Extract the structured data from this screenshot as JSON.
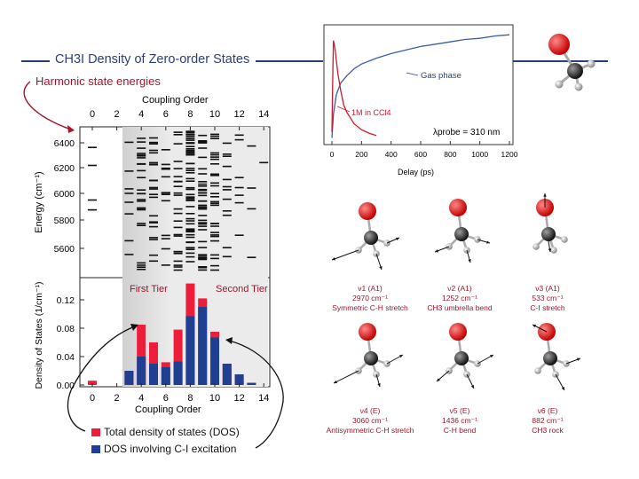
{
  "header": {
    "title": "CH3I Density of Zero-order States",
    "subtitle": "Harmonic state energies"
  },
  "colors": {
    "accent": "#2a3f7a",
    "total": "#ee1d3a",
    "cI": "#1f3f93",
    "arrow": "#a0152a"
  },
  "energy_panel": {
    "xlabel": "Coupling Order",
    "ylabel": "Energy (cm⁻¹)",
    "xticks": [
      "0",
      "2",
      "4",
      "6",
      "8",
      "10",
      "12",
      "14"
    ],
    "yticks": [
      "6400",
      "6200",
      "6000",
      "5800",
      "5600"
    ]
  },
  "chart_data": {
    "type": "bar",
    "title": "CH3I Density of Zero-order States",
    "xlabel": "Coupling Order",
    "ylabel": "Density of States (1/cm⁻¹)",
    "yticks": [
      "0.12",
      "0.08",
      "0.04",
      "0.00"
    ],
    "ylim": [
      0,
      0.15
    ],
    "x": [
      0,
      3,
      4,
      5,
      6,
      7,
      8,
      9,
      10,
      11,
      12,
      13
    ],
    "series": [
      {
        "name": "Total density of states (DOS)",
        "color": "#ee1d3a",
        "values": [
          0.006,
          0.02,
          0.085,
          0.06,
          0.032,
          0.078,
          0.143,
          0.122,
          0.075,
          0.03,
          0.015,
          0.003
        ]
      },
      {
        "name": "DOS involving C-I excitation",
        "color": "#1f3f93",
        "values": [
          0.0,
          0.02,
          0.04,
          0.03,
          0.025,
          0.033,
          0.097,
          0.11,
          0.067,
          0.03,
          0.015,
          0.003
        ]
      }
    ],
    "annotations": [
      "First Tier",
      "Second Tier"
    ]
  },
  "legend": {
    "total_label": "Total density of states (DOS)",
    "ci_label": "DOS involving C-I excitation"
  },
  "inset_plot": {
    "xlabel": "Delay (ps)",
    "xticks": [
      "0",
      "200",
      "400",
      "600",
      "800",
      "1000",
      "1200"
    ],
    "gas_label": "Gas phase",
    "solution_label": "1M in CCl4",
    "probe_label": "λprobe = 310 nm",
    "gas_curve": [
      [
        0,
        0.05
      ],
      [
        10,
        0.25
      ],
      [
        30,
        0.42
      ],
      [
        60,
        0.52
      ],
      [
        100,
        0.58
      ],
      [
        150,
        0.64
      ],
      [
        200,
        0.68
      ],
      [
        300,
        0.73
      ],
      [
        400,
        0.77
      ],
      [
        500,
        0.8
      ],
      [
        600,
        0.83
      ],
      [
        700,
        0.85
      ],
      [
        800,
        0.87
      ],
      [
        900,
        0.89
      ],
      [
        1000,
        0.9
      ],
      [
        1100,
        0.92
      ],
      [
        1200,
        0.93
      ]
    ],
    "solution_curve": [
      [
        0,
        0.1
      ],
      [
        5,
        0.5
      ],
      [
        10,
        0.88
      ],
      [
        20,
        0.82
      ],
      [
        40,
        0.6
      ],
      [
        60,
        0.45
      ],
      [
        80,
        0.33
      ],
      [
        100,
        0.27
      ],
      [
        150,
        0.17
      ],
      [
        200,
        0.12
      ],
      [
        250,
        0.09
      ],
      [
        300,
        0.07
      ]
    ]
  },
  "modes": [
    {
      "name": "ν1 (A1)",
      "freq": "2970 cm⁻¹",
      "desc": "Symmetric C-H stretch"
    },
    {
      "name": "ν2 (A1)",
      "freq": "1252 cm⁻¹",
      "desc": "CH3 umbrella bend"
    },
    {
      "name": "ν3 (A1)",
      "freq": "533 cm⁻¹",
      "desc": "C-I stretch"
    },
    {
      "name": "ν4 (E)",
      "freq": "3060 cm⁻¹",
      "desc": "Antisymmetric C-H stretch"
    },
    {
      "name": "ν5 (E)",
      "freq": "1436 cm⁻¹",
      "desc": "C-H bend"
    },
    {
      "name": "ν6 (E)",
      "freq": "882 cm⁻¹",
      "desc": "CH3 rock"
    }
  ]
}
